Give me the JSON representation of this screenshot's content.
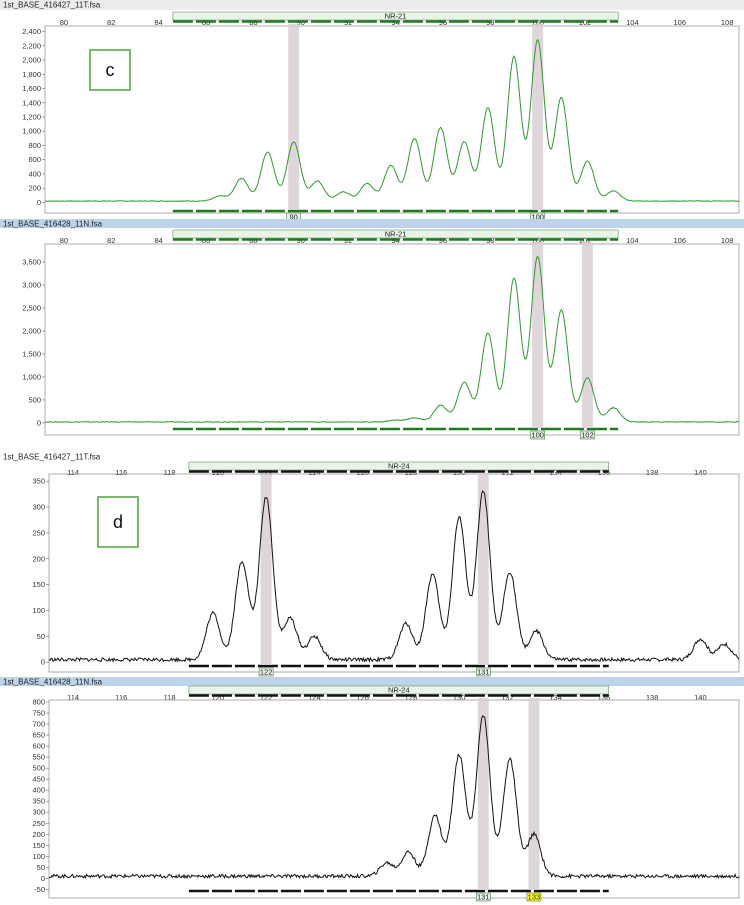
{
  "colors": {
    "green_trace": "#2e9a2e",
    "black_trace": "#111111",
    "highlight": "#d9cfd6",
    "header_blue": "#bcd3ea",
    "header_gray": "#ececec",
    "marker_green": "#1f7a1f",
    "marker_black": "#111111",
    "bin_box": "#e4f2e4",
    "bin_box_yellow": "#ffff00",
    "letter_box": "#5aa84a"
  },
  "chart_data": [
    {
      "type": "line",
      "file": "1st_BASE_416427_11T.fsa",
      "marker": "NR-21",
      "panel_letter": "c",
      "xlim": [
        79.2,
        108.5
      ],
      "x_ticks": [
        "80",
        "82",
        "84",
        "86",
        "88",
        "90",
        "92",
        "94",
        "96",
        "98",
        "100",
        "102",
        "104",
        "106",
        "108"
      ],
      "ylim": [
        -120,
        2450
      ],
      "y_ticks": [
        "2,400",
        "2,200",
        "2,000",
        "1,800",
        "1,600",
        "1,400",
        "1,200",
        "1,000",
        "800",
        "600",
        "400",
        "200",
        "0"
      ],
      "peaks_x": [
        86.6,
        87.5,
        88.6,
        89.7,
        90.7,
        91.8,
        92.8,
        93.8,
        94.8,
        95.9,
        96.9,
        97.9,
        99.0,
        100.0,
        101.0,
        102.1,
        103.2
      ],
      "peaks_y": [
        90,
        340,
        710,
        850,
        300,
        150,
        270,
        520,
        900,
        1050,
        850,
        1330,
        2050,
        2280,
        1470,
        580,
        160
      ],
      "baseline": 20,
      "highlights_x": [
        89.7,
        100.0
      ],
      "bin_labels": [
        "90",
        "100"
      ],
      "bin_colors": [
        "normal",
        "normal"
      ],
      "marker_range": [
        84.6,
        103.4
      ],
      "color": "green"
    },
    {
      "type": "line",
      "file": "1st_BASE_416428_11N.fsa",
      "marker": "NR-21",
      "panel_letter": "",
      "xlim": [
        79.2,
        108.5
      ],
      "x_ticks": [
        "80",
        "82",
        "84",
        "86",
        "88",
        "90",
        "92",
        "94",
        "96",
        "98",
        "100",
        "102",
        "104",
        "106",
        "108"
      ],
      "ylim": [
        -220,
        3850
      ],
      "y_ticks": [
        "3,500",
        "3,000",
        "2,500",
        "2,000",
        "1,500",
        "1,000",
        "500",
        "0"
      ],
      "peaks_x": [
        94.0,
        94.8,
        95.9,
        96.9,
        97.9,
        99.0,
        100.0,
        101.0,
        102.1,
        103.2
      ],
      "peaks_y": [
        60,
        110,
        380,
        880,
        1950,
        3150,
        3620,
        2450,
        980,
        330
      ],
      "baseline": 20,
      "highlights_x": [
        100.0,
        102.1
      ],
      "bin_labels": [
        "100",
        "102"
      ],
      "bin_colors": [
        "normal",
        "normal"
      ],
      "marker_range": [
        84.6,
        103.4
      ],
      "color": "green"
    },
    {
      "type": "line",
      "file": "1st_BASE_416427_11T.fsa",
      "marker": "NR-24",
      "panel_letter": "d",
      "xlim": [
        113.0,
        141.6
      ],
      "x_ticks": [
        "114",
        "116",
        "118",
        "120",
        "122",
        "124",
        "126",
        "128",
        "130",
        "132",
        "134",
        "136",
        "138",
        "140"
      ],
      "ylim": [
        -15,
        360
      ],
      "y_ticks": [
        "350",
        "300",
        "250",
        "200",
        "150",
        "100",
        "50",
        "0"
      ],
      "peaks_x": [
        119.8,
        121.0,
        122.0,
        123.0,
        124.0,
        127.8,
        128.9,
        130.0,
        131.0,
        132.1,
        133.2,
        140.0,
        141.0
      ],
      "peaks_y": [
        95,
        195,
        320,
        85,
        50,
        75,
        170,
        280,
        330,
        175,
        60,
        45,
        35
      ],
      "baseline": 5,
      "highlights_x": [
        122.0,
        131.0
      ],
      "bin_labels": [
        "122",
        "131"
      ],
      "bin_colors": [
        "normal",
        "normal"
      ],
      "marker_range": [
        118.8,
        136.2
      ],
      "color": "black"
    },
    {
      "type": "line",
      "file": "1st_BASE_416428_11N.fsa",
      "marker": "NR-24",
      "panel_letter": "",
      "xlim": [
        113.0,
        141.6
      ],
      "x_ticks": [
        "114",
        "116",
        "118",
        "120",
        "122",
        "124",
        "126",
        "128",
        "130",
        "132",
        "134",
        "136",
        "138",
        "140"
      ],
      "ylim": [
        -80,
        800
      ],
      "y_ticks": [
        "800",
        "750",
        "700",
        "650",
        "600",
        "550",
        "500",
        "450",
        "400",
        "350",
        "300",
        "250",
        "200",
        "150",
        "100",
        "50",
        "0",
        "-50"
      ],
      "peaks_x": [
        127.0,
        127.9,
        129.0,
        130.0,
        131.0,
        132.1,
        133.1
      ],
      "peaks_y": [
        70,
        120,
        285,
        560,
        740,
        540,
        200
      ],
      "baseline": 10,
      "highlights_x": [
        131.0,
        133.1
      ],
      "bin_labels": [
        "131",
        "133"
      ],
      "bin_colors": [
        "normal",
        "yellow"
      ],
      "marker_range": [
        118.8,
        136.2
      ],
      "color": "black"
    }
  ]
}
